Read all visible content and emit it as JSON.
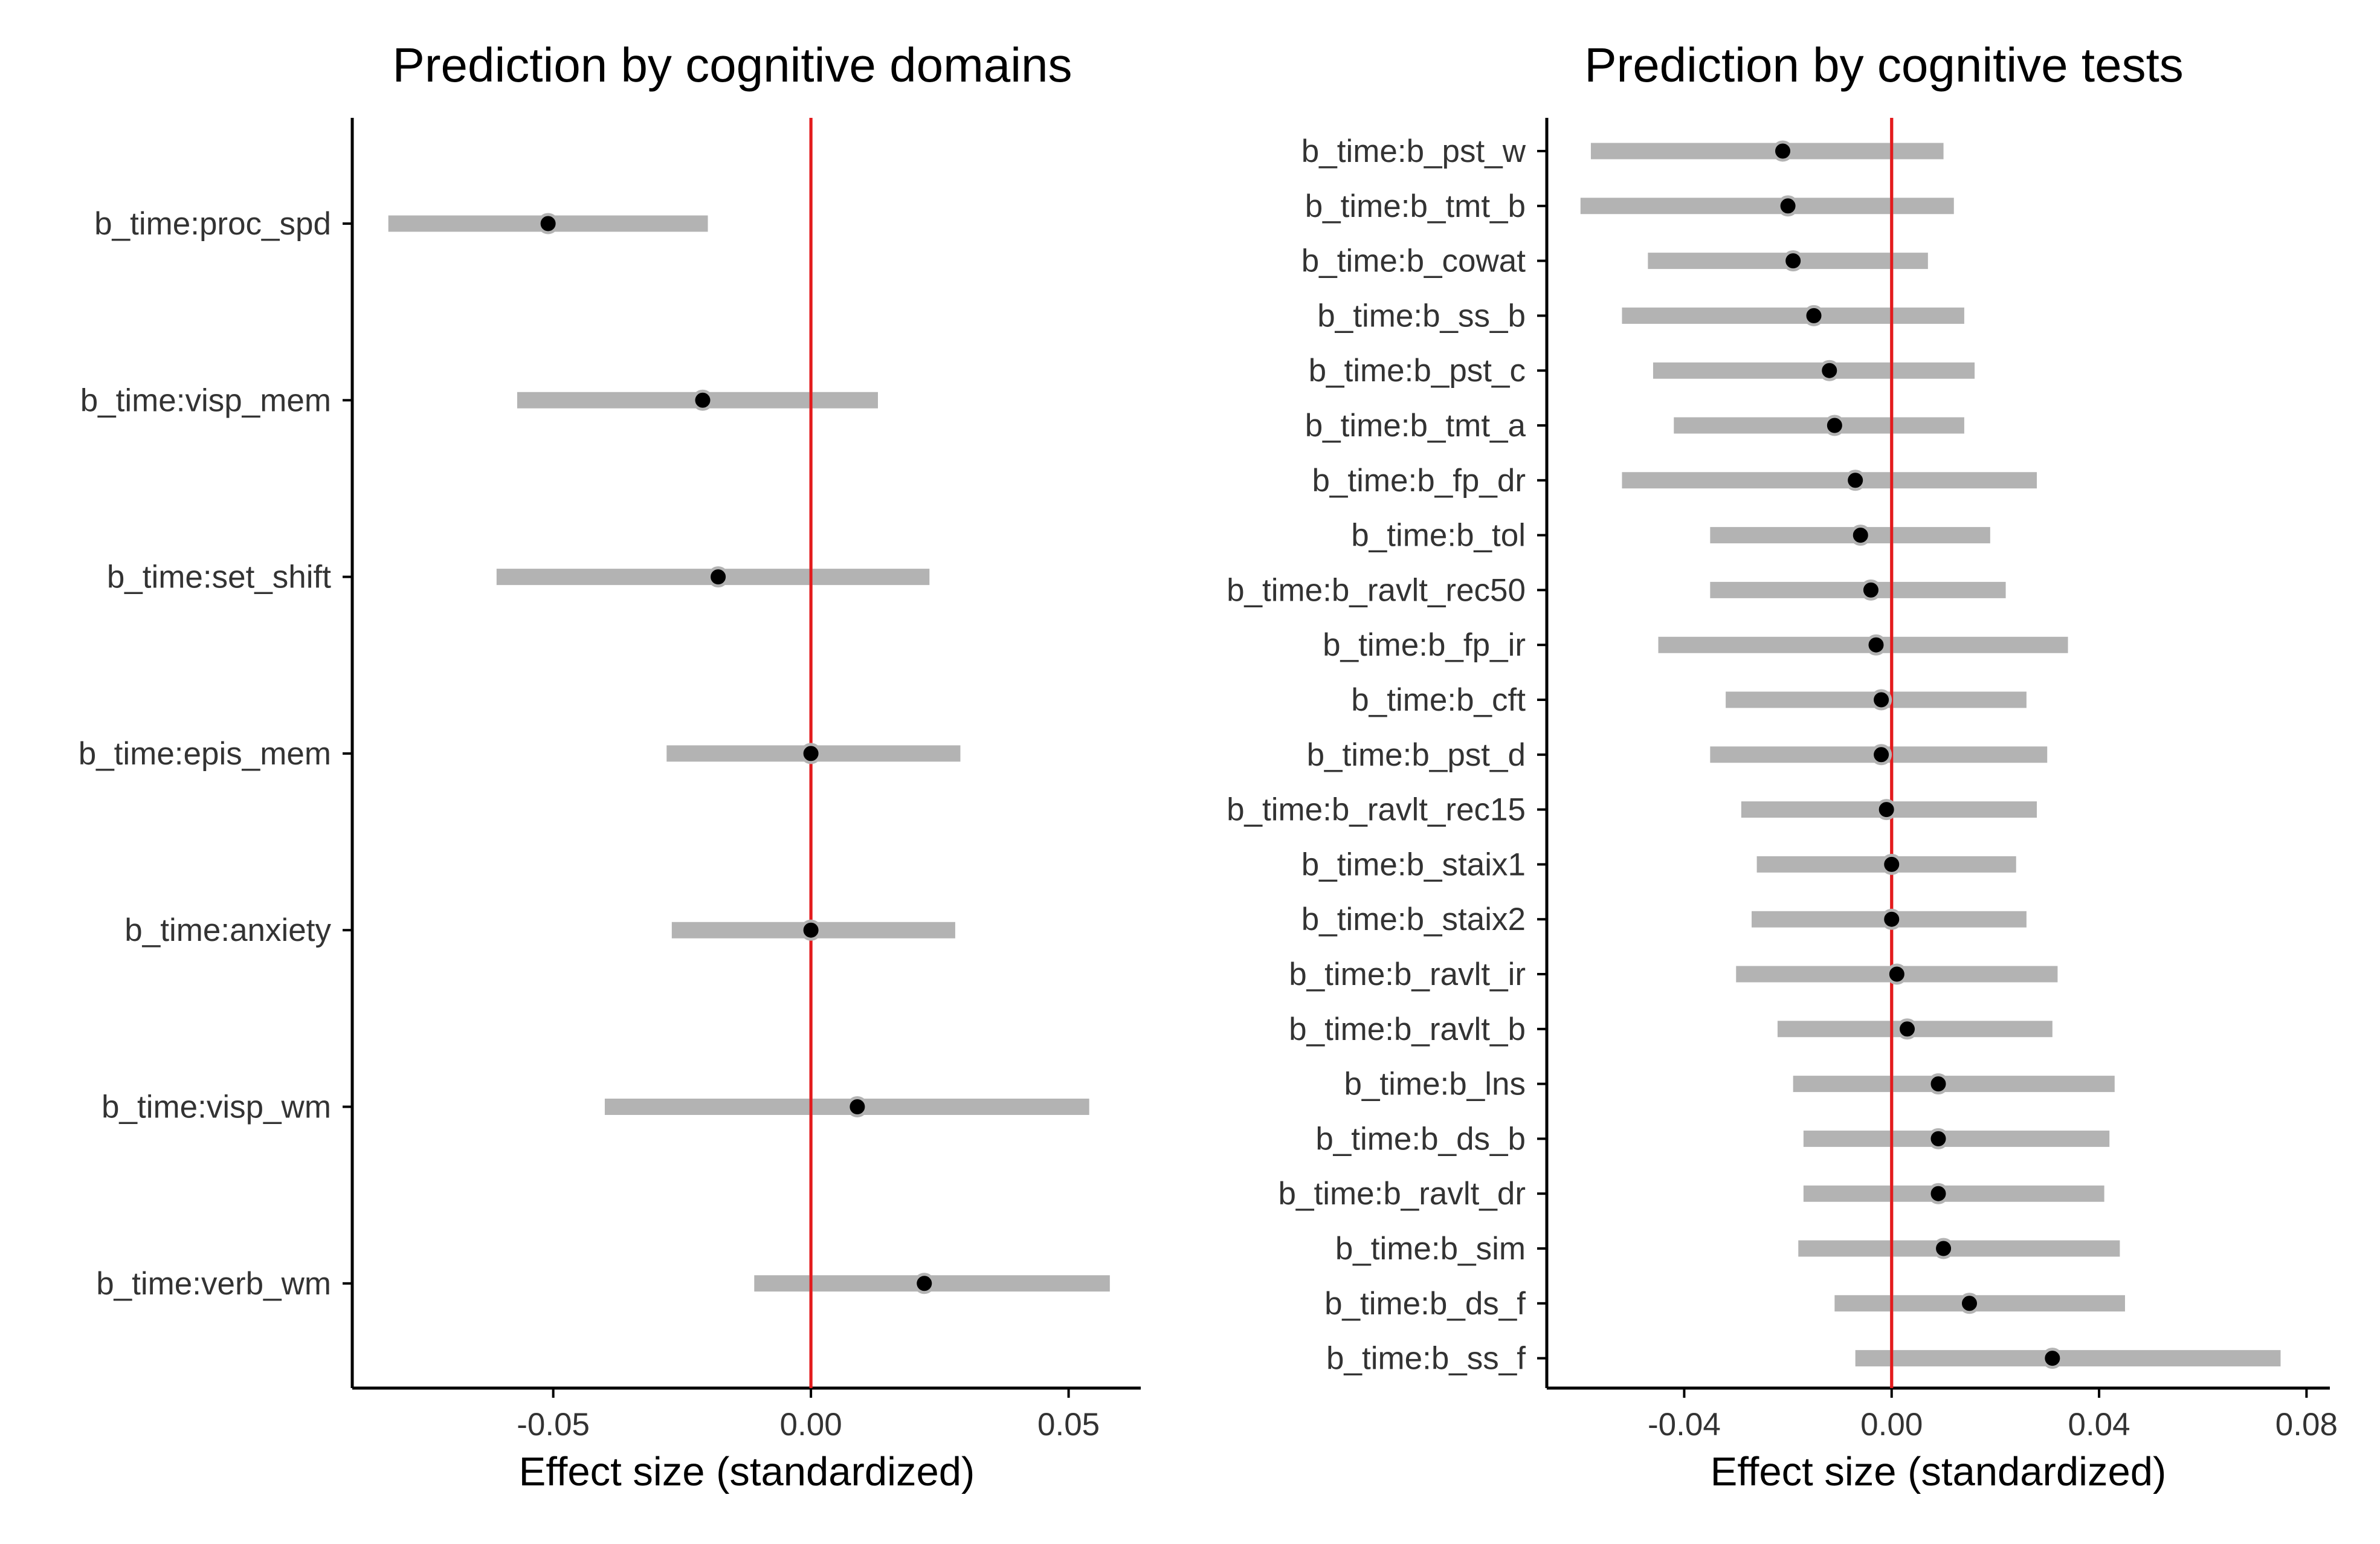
{
  "chart_data": [
    {
      "type": "forest",
      "title": "Prediction by cognitive domains",
      "xlabel": "Effect size (standardized)",
      "xlim": [
        -0.089,
        0.064
      ],
      "xticks": [
        -0.05,
        0.0,
        0.05
      ],
      "xtick_labels": [
        "-0.05",
        "0.00",
        "0.05"
      ],
      "reference_line": 0,
      "reference_color": "#e31a1c",
      "interval_color": "#b3b3b3",
      "point_color": "#000000",
      "grid": false,
      "rows": [
        {
          "label": "b_time:proc_spd",
          "estimate": -0.051,
          "lower": -0.082,
          "upper": -0.02
        },
        {
          "label": "b_time:visp_mem",
          "estimate": -0.021,
          "lower": -0.057,
          "upper": 0.013
        },
        {
          "label": "b_time:set_shift",
          "estimate": -0.018,
          "lower": -0.061,
          "upper": 0.023
        },
        {
          "label": "b_time:epis_mem",
          "estimate": 0.0,
          "lower": -0.028,
          "upper": 0.029
        },
        {
          "label": "b_time:anxiety",
          "estimate": 0.0,
          "lower": -0.027,
          "upper": 0.028
        },
        {
          "label": "b_time:visp_wm",
          "estimate": 0.009,
          "lower": -0.04,
          "upper": 0.054
        },
        {
          "label": "b_time:verb_wm",
          "estimate": 0.022,
          "lower": -0.011,
          "upper": 0.058
        }
      ]
    },
    {
      "type": "forest",
      "title": "Prediction by cognitive tests",
      "xlabel": "Effect size (standardized)",
      "xlim": [
        -0.0665,
        0.0845
      ],
      "xticks": [
        -0.04,
        0.0,
        0.04,
        0.08
      ],
      "xtick_labels": [
        "-0.04",
        "0.00",
        "0.04",
        "0.08"
      ],
      "reference_line": 0,
      "reference_color": "#e31a1c",
      "interval_color": "#b3b3b3",
      "point_color": "#000000",
      "grid": false,
      "rows": [
        {
          "label": "b_time:b_pst_w",
          "estimate": -0.021,
          "lower": -0.058,
          "upper": 0.01
        },
        {
          "label": "b_time:b_tmt_b",
          "estimate": -0.02,
          "lower": -0.06,
          "upper": 0.012
        },
        {
          "label": "b_time:b_cowat",
          "estimate": -0.019,
          "lower": -0.047,
          "upper": 0.007
        },
        {
          "label": "b_time:b_ss_b",
          "estimate": -0.015,
          "lower": -0.052,
          "upper": 0.014
        },
        {
          "label": "b_time:b_pst_c",
          "estimate": -0.012,
          "lower": -0.046,
          "upper": 0.016
        },
        {
          "label": "b_time:b_tmt_a",
          "estimate": -0.011,
          "lower": -0.042,
          "upper": 0.014
        },
        {
          "label": "b_time:b_fp_dr",
          "estimate": -0.007,
          "lower": -0.052,
          "upper": 0.028
        },
        {
          "label": "b_time:b_tol",
          "estimate": -0.006,
          "lower": -0.035,
          "upper": 0.019
        },
        {
          "label": "b_time:b_ravlt_rec50",
          "estimate": -0.004,
          "lower": -0.035,
          "upper": 0.022
        },
        {
          "label": "b_time:b_fp_ir",
          "estimate": -0.003,
          "lower": -0.045,
          "upper": 0.034
        },
        {
          "label": "b_time:b_cft",
          "estimate": -0.002,
          "lower": -0.032,
          "upper": 0.026
        },
        {
          "label": "b_time:b_pst_d",
          "estimate": -0.002,
          "lower": -0.035,
          "upper": 0.03
        },
        {
          "label": "b_time:b_ravlt_rec15",
          "estimate": -0.001,
          "lower": -0.029,
          "upper": 0.028
        },
        {
          "label": "b_time:b_staix1",
          "estimate": 0.0,
          "lower": -0.026,
          "upper": 0.024
        },
        {
          "label": "b_time:b_staix2",
          "estimate": 0.0,
          "lower": -0.027,
          "upper": 0.026
        },
        {
          "label": "b_time:b_ravlt_ir",
          "estimate": 0.001,
          "lower": -0.03,
          "upper": 0.032
        },
        {
          "label": "b_time:b_ravlt_b",
          "estimate": 0.003,
          "lower": -0.022,
          "upper": 0.031
        },
        {
          "label": "b_time:b_lns",
          "estimate": 0.009,
          "lower": -0.019,
          "upper": 0.043
        },
        {
          "label": "b_time:b_ds_b",
          "estimate": 0.009,
          "lower": -0.017,
          "upper": 0.042
        },
        {
          "label": "b_time:b_ravlt_dr",
          "estimate": 0.009,
          "lower": -0.017,
          "upper": 0.041
        },
        {
          "label": "b_time:b_sim",
          "estimate": 0.01,
          "lower": -0.018,
          "upper": 0.044
        },
        {
          "label": "b_time:b_ds_f",
          "estimate": 0.015,
          "lower": -0.011,
          "upper": 0.045
        },
        {
          "label": "b_time:b_ss_f",
          "estimate": 0.031,
          "lower": -0.007,
          "upper": 0.075
        }
      ]
    }
  ]
}
